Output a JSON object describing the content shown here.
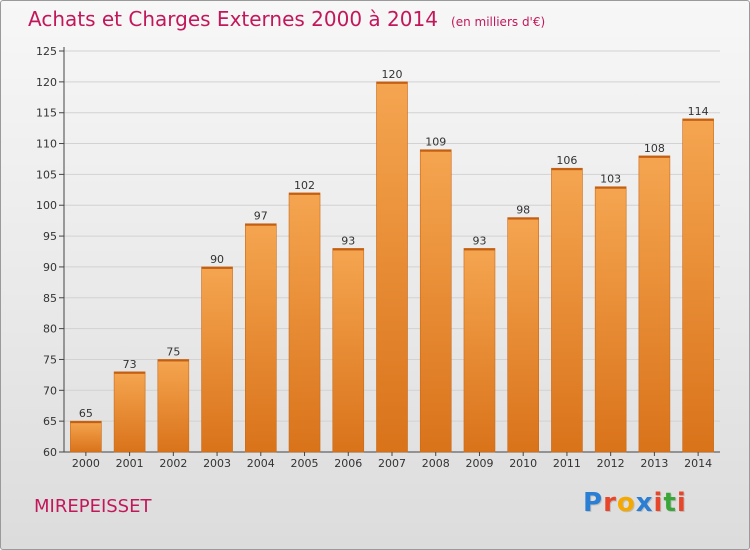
{
  "title": "Achats et Charges Externes 2000 à 2014",
  "unit_note": "(en milliers d'€)",
  "commune": "MIREPEISSET",
  "logo": {
    "text": "Proxiti",
    "colors": [
      "#2a7fd4",
      "#e8462a",
      "#f5a800",
      "#2a7fd4",
      "#e8462a",
      "#3aa63a",
      "#e8462a"
    ]
  },
  "colors": {
    "bar_top": "#f5a550",
    "bar_bottom": "#d9731a",
    "title": "#c2185b",
    "grid": "#d2d2d2",
    "axis": "#444444"
  },
  "chart_data": {
    "type": "bar",
    "categories": [
      "2000",
      "2001",
      "2002",
      "2003",
      "2004",
      "2005",
      "2006",
      "2007",
      "2008",
      "2009",
      "2010",
      "2011",
      "2012",
      "2013",
      "2014"
    ],
    "values": [
      65,
      73,
      75,
      90,
      97,
      102,
      93,
      120,
      109,
      93,
      98,
      106,
      103,
      108,
      114
    ],
    "ylim": [
      60,
      125
    ],
    "yticks": [
      60,
      65,
      70,
      75,
      80,
      85,
      90,
      95,
      100,
      105,
      110,
      115,
      120,
      125
    ],
    "grid": true,
    "legend": "none"
  }
}
